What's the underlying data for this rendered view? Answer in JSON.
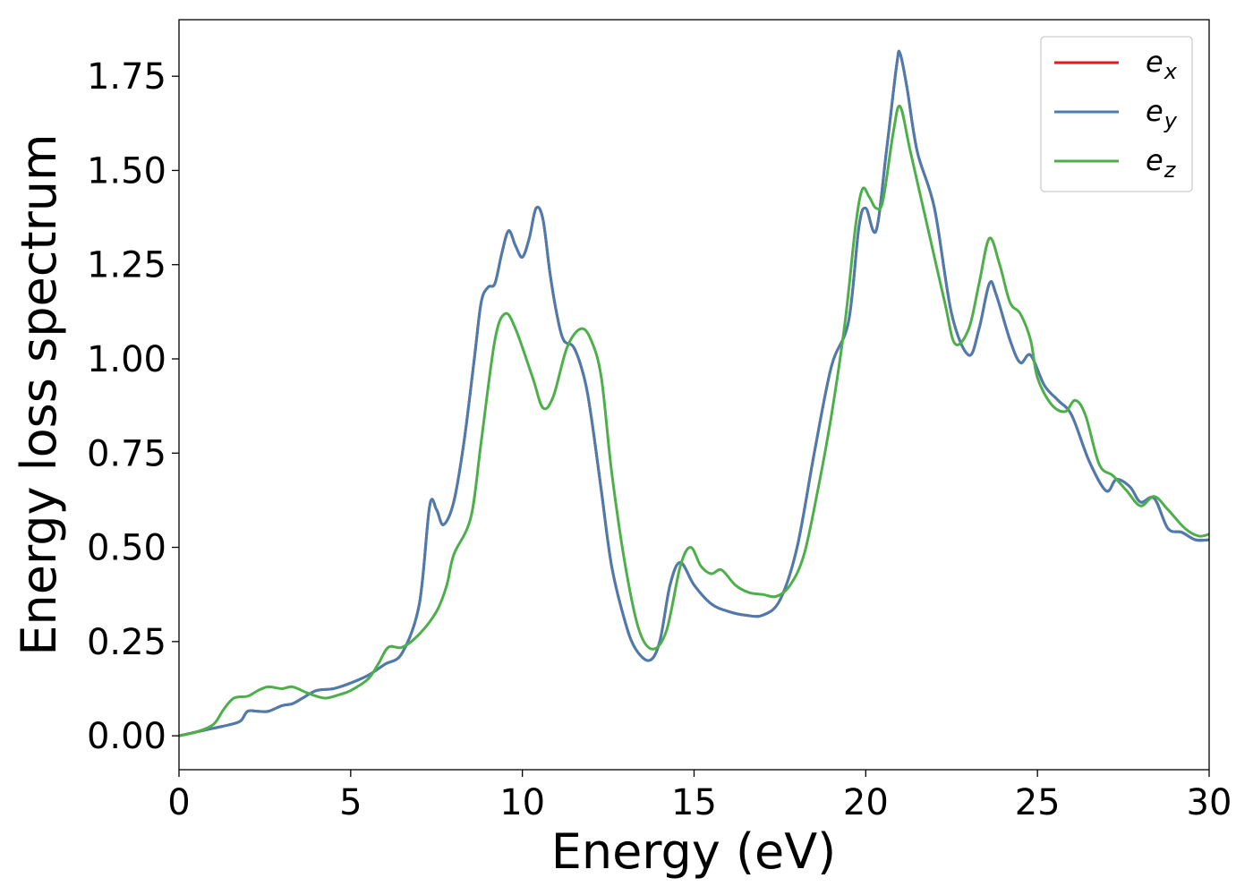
{
  "chart_data": {
    "type": "line",
    "title": "",
    "xlabel": "Energy (eV)",
    "ylabel": "Energy loss spectrum",
    "xlim": [
      0,
      30
    ],
    "ylim": [
      -0.09,
      1.9
    ],
    "xticks": [
      0,
      5,
      10,
      15,
      20,
      25,
      30
    ],
    "xtick_labels": [
      "0",
      "5",
      "10",
      "15",
      "20",
      "25",
      "30"
    ],
    "yticks": [
      0,
      0.25,
      0.5,
      0.75,
      1.0,
      1.25,
      1.5,
      1.75
    ],
    "ytick_labels": [
      "0.00",
      "0.25",
      "0.50",
      "0.75",
      "1.00",
      "1.25",
      "1.50",
      "1.75"
    ],
    "grid": false,
    "legend_position": "top-right",
    "series": [
      {
        "name": "e_x",
        "label_base": "e",
        "label_sub": "x",
        "color": "#e41a1c",
        "points": [
          [
            0,
            0.0
          ],
          [
            0.5,
            0.01
          ],
          [
            1.0,
            0.02
          ],
          [
            1.5,
            0.03
          ],
          [
            1.8,
            0.04
          ],
          [
            2.0,
            0.065
          ],
          [
            2.3,
            0.065
          ],
          [
            2.6,
            0.065
          ],
          [
            3.0,
            0.08
          ],
          [
            3.3,
            0.085
          ],
          [
            3.6,
            0.1
          ],
          [
            4.0,
            0.12
          ],
          [
            4.5,
            0.125
          ],
          [
            5.0,
            0.14
          ],
          [
            5.5,
            0.16
          ],
          [
            6.0,
            0.19
          ],
          [
            6.5,
            0.22
          ],
          [
            7.0,
            0.35
          ],
          [
            7.3,
            0.61
          ],
          [
            7.5,
            0.6
          ],
          [
            7.7,
            0.56
          ],
          [
            8.0,
            0.62
          ],
          [
            8.3,
            0.78
          ],
          [
            8.6,
            1.0
          ],
          [
            8.8,
            1.15
          ],
          [
            9.0,
            1.19
          ],
          [
            9.2,
            1.2
          ],
          [
            9.4,
            1.28
          ],
          [
            9.6,
            1.34
          ],
          [
            9.8,
            1.3
          ],
          [
            10.0,
            1.27
          ],
          [
            10.2,
            1.32
          ],
          [
            10.4,
            1.4
          ],
          [
            10.6,
            1.37
          ],
          [
            10.8,
            1.23
          ],
          [
            11.0,
            1.12
          ],
          [
            11.2,
            1.05
          ],
          [
            11.5,
            1.03
          ],
          [
            11.8,
            0.95
          ],
          [
            12.0,
            0.85
          ],
          [
            12.3,
            0.65
          ],
          [
            12.6,
            0.45
          ],
          [
            13.0,
            0.3
          ],
          [
            13.3,
            0.23
          ],
          [
            13.7,
            0.2
          ],
          [
            14.0,
            0.25
          ],
          [
            14.3,
            0.4
          ],
          [
            14.6,
            0.46
          ],
          [
            15.0,
            0.4
          ],
          [
            15.5,
            0.35
          ],
          [
            16.0,
            0.33
          ],
          [
            16.5,
            0.32
          ],
          [
            17.0,
            0.32
          ],
          [
            17.5,
            0.36
          ],
          [
            18.0,
            0.5
          ],
          [
            18.5,
            0.75
          ],
          [
            19.0,
            0.98
          ],
          [
            19.5,
            1.1
          ],
          [
            19.8,
            1.35
          ],
          [
            20.0,
            1.4
          ],
          [
            20.3,
            1.34
          ],
          [
            20.6,
            1.55
          ],
          [
            20.9,
            1.78
          ],
          [
            21.0,
            1.81
          ],
          [
            21.2,
            1.72
          ],
          [
            21.5,
            1.55
          ],
          [
            22.0,
            1.4
          ],
          [
            22.5,
            1.12
          ],
          [
            23.0,
            1.01
          ],
          [
            23.3,
            1.08
          ],
          [
            23.6,
            1.2
          ],
          [
            23.8,
            1.17
          ],
          [
            24.2,
            1.05
          ],
          [
            24.5,
            0.99
          ],
          [
            24.8,
            1.01
          ],
          [
            25.2,
            0.93
          ],
          [
            25.6,
            0.89
          ],
          [
            26.0,
            0.85
          ],
          [
            26.5,
            0.73
          ],
          [
            27.0,
            0.65
          ],
          [
            27.3,
            0.68
          ],
          [
            27.7,
            0.66
          ],
          [
            28.0,
            0.62
          ],
          [
            28.4,
            0.63
          ],
          [
            28.8,
            0.55
          ],
          [
            29.2,
            0.54
          ],
          [
            29.6,
            0.52
          ],
          [
            30.0,
            0.52
          ]
        ]
      },
      {
        "name": "e_y",
        "label_base": "e",
        "label_sub": "y",
        "color": "#4a7cb0",
        "points": [
          [
            0,
            0.0
          ],
          [
            0.5,
            0.01
          ],
          [
            1.0,
            0.02
          ],
          [
            1.5,
            0.03
          ],
          [
            1.8,
            0.04
          ],
          [
            2.0,
            0.065
          ],
          [
            2.3,
            0.065
          ],
          [
            2.6,
            0.065
          ],
          [
            3.0,
            0.08
          ],
          [
            3.3,
            0.085
          ],
          [
            3.6,
            0.1
          ],
          [
            4.0,
            0.12
          ],
          [
            4.5,
            0.125
          ],
          [
            5.0,
            0.14
          ],
          [
            5.5,
            0.16
          ],
          [
            6.0,
            0.19
          ],
          [
            6.5,
            0.22
          ],
          [
            7.0,
            0.35
          ],
          [
            7.3,
            0.61
          ],
          [
            7.5,
            0.6
          ],
          [
            7.7,
            0.56
          ],
          [
            8.0,
            0.62
          ],
          [
            8.3,
            0.78
          ],
          [
            8.6,
            1.0
          ],
          [
            8.8,
            1.15
          ],
          [
            9.0,
            1.19
          ],
          [
            9.2,
            1.2
          ],
          [
            9.4,
            1.28
          ],
          [
            9.6,
            1.34
          ],
          [
            9.8,
            1.3
          ],
          [
            10.0,
            1.27
          ],
          [
            10.2,
            1.32
          ],
          [
            10.4,
            1.4
          ],
          [
            10.6,
            1.37
          ],
          [
            10.8,
            1.23
          ],
          [
            11.0,
            1.12
          ],
          [
            11.2,
            1.05
          ],
          [
            11.5,
            1.03
          ],
          [
            11.8,
            0.95
          ],
          [
            12.0,
            0.85
          ],
          [
            12.3,
            0.65
          ],
          [
            12.6,
            0.45
          ],
          [
            13.0,
            0.3
          ],
          [
            13.3,
            0.23
          ],
          [
            13.7,
            0.2
          ],
          [
            14.0,
            0.25
          ],
          [
            14.3,
            0.4
          ],
          [
            14.6,
            0.46
          ],
          [
            15.0,
            0.4
          ],
          [
            15.5,
            0.35
          ],
          [
            16.0,
            0.33
          ],
          [
            16.5,
            0.32
          ],
          [
            17.0,
            0.32
          ],
          [
            17.5,
            0.36
          ],
          [
            18.0,
            0.5
          ],
          [
            18.5,
            0.75
          ],
          [
            19.0,
            0.98
          ],
          [
            19.5,
            1.1
          ],
          [
            19.8,
            1.35
          ],
          [
            20.0,
            1.4
          ],
          [
            20.3,
            1.34
          ],
          [
            20.6,
            1.55
          ],
          [
            20.9,
            1.78
          ],
          [
            21.0,
            1.81
          ],
          [
            21.2,
            1.72
          ],
          [
            21.5,
            1.55
          ],
          [
            22.0,
            1.4
          ],
          [
            22.5,
            1.12
          ],
          [
            23.0,
            1.01
          ],
          [
            23.3,
            1.08
          ],
          [
            23.6,
            1.2
          ],
          [
            23.8,
            1.17
          ],
          [
            24.2,
            1.05
          ],
          [
            24.5,
            0.99
          ],
          [
            24.8,
            1.01
          ],
          [
            25.2,
            0.93
          ],
          [
            25.6,
            0.89
          ],
          [
            26.0,
            0.85
          ],
          [
            26.5,
            0.73
          ],
          [
            27.0,
            0.65
          ],
          [
            27.3,
            0.68
          ],
          [
            27.7,
            0.66
          ],
          [
            28.0,
            0.62
          ],
          [
            28.4,
            0.63
          ],
          [
            28.8,
            0.55
          ],
          [
            29.2,
            0.54
          ],
          [
            29.6,
            0.52
          ],
          [
            30.0,
            0.52
          ]
        ]
      },
      {
        "name": "e_z",
        "label_base": "e",
        "label_sub": "z",
        "color": "#4daf4a",
        "points": [
          [
            0,
            0.0
          ],
          [
            0.5,
            0.01
          ],
          [
            1.0,
            0.03
          ],
          [
            1.3,
            0.07
          ],
          [
            1.6,
            0.1
          ],
          [
            2.0,
            0.105
          ],
          [
            2.3,
            0.12
          ],
          [
            2.6,
            0.13
          ],
          [
            3.0,
            0.125
          ],
          [
            3.3,
            0.13
          ],
          [
            3.7,
            0.115
          ],
          [
            4.0,
            0.105
          ],
          [
            4.3,
            0.1
          ],
          [
            4.7,
            0.11
          ],
          [
            5.0,
            0.12
          ],
          [
            5.5,
            0.15
          ],
          [
            5.8,
            0.19
          ],
          [
            6.1,
            0.235
          ],
          [
            6.5,
            0.235
          ],
          [
            7.0,
            0.27
          ],
          [
            7.5,
            0.33
          ],
          [
            7.8,
            0.4
          ],
          [
            8.0,
            0.48
          ],
          [
            8.5,
            0.58
          ],
          [
            8.8,
            0.78
          ],
          [
            9.2,
            1.05
          ],
          [
            9.5,
            1.12
          ],
          [
            9.8,
            1.08
          ],
          [
            10.3,
            0.95
          ],
          [
            10.6,
            0.87
          ],
          [
            10.9,
            0.9
          ],
          [
            11.3,
            1.03
          ],
          [
            11.7,
            1.08
          ],
          [
            12.0,
            1.05
          ],
          [
            12.3,
            0.95
          ],
          [
            12.6,
            0.7
          ],
          [
            13.0,
            0.45
          ],
          [
            13.4,
            0.28
          ],
          [
            13.8,
            0.23
          ],
          [
            14.2,
            0.28
          ],
          [
            14.6,
            0.45
          ],
          [
            14.9,
            0.5
          ],
          [
            15.2,
            0.45
          ],
          [
            15.5,
            0.43
          ],
          [
            15.8,
            0.44
          ],
          [
            16.2,
            0.4
          ],
          [
            16.6,
            0.38
          ],
          [
            17.0,
            0.375
          ],
          [
            17.4,
            0.37
          ],
          [
            17.8,
            0.4
          ],
          [
            18.2,
            0.48
          ],
          [
            18.6,
            0.65
          ],
          [
            19.0,
            0.85
          ],
          [
            19.4,
            1.1
          ],
          [
            19.7,
            1.35
          ],
          [
            19.9,
            1.45
          ],
          [
            20.1,
            1.43
          ],
          [
            20.3,
            1.4
          ],
          [
            20.5,
            1.42
          ],
          [
            20.8,
            1.6
          ],
          [
            21.0,
            1.67
          ],
          [
            21.3,
            1.55
          ],
          [
            21.8,
            1.35
          ],
          [
            22.3,
            1.15
          ],
          [
            22.6,
            1.04
          ],
          [
            23.0,
            1.08
          ],
          [
            23.3,
            1.2
          ],
          [
            23.6,
            1.32
          ],
          [
            23.9,
            1.25
          ],
          [
            24.2,
            1.15
          ],
          [
            24.5,
            1.12
          ],
          [
            24.8,
            1.05
          ],
          [
            25.0,
            0.95
          ],
          [
            25.4,
            0.88
          ],
          [
            25.8,
            0.86
          ],
          [
            26.1,
            0.89
          ],
          [
            26.4,
            0.85
          ],
          [
            26.8,
            0.72
          ],
          [
            27.2,
            0.69
          ],
          [
            27.6,
            0.65
          ],
          [
            28.0,
            0.61
          ],
          [
            28.4,
            0.635
          ],
          [
            28.8,
            0.6
          ],
          [
            29.3,
            0.55
          ],
          [
            29.7,
            0.53
          ],
          [
            30.0,
            0.535
          ]
        ]
      }
    ]
  }
}
